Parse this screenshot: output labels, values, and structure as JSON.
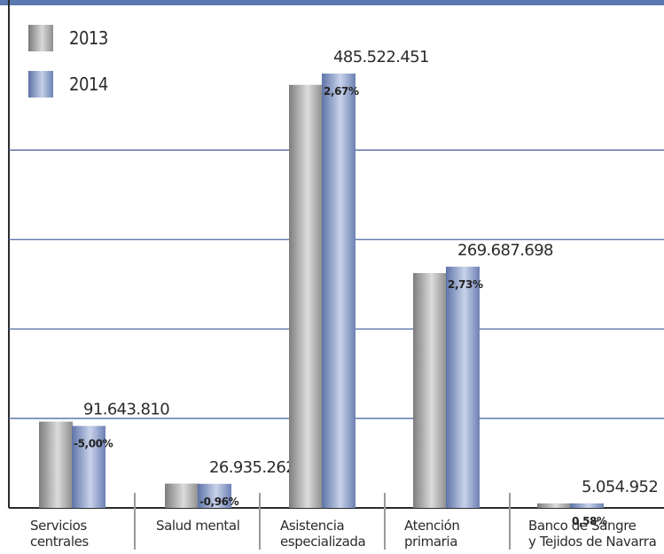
{
  "chart_data": {
    "type": "bar",
    "categories": [
      [
        "Servicios",
        "centrales"
      ],
      [
        "Salud mental"
      ],
      [
        "Asistencia",
        "especializada"
      ],
      [
        "Atención",
        "primaria"
      ],
      [
        "Banco de Sangre",
        "y Tejidos de Navarra"
      ]
    ],
    "series": [
      {
        "name": "2013",
        "values": [
          96467168,
          27196344,
          472887990,
          262522884,
          5025803
        ],
        "color": "#a3a3a3"
      },
      {
        "name": "2014",
        "values": [
          91643810,
          26935262,
          485522451,
          269687698,
          5054952
        ],
        "color": "#8196c4"
      }
    ],
    "value_labels": [
      "91.643.810",
      "26.935.262",
      "485.522.451",
      "269.687.698",
      "5.054.952"
    ],
    "pct_labels": [
      "-5,00%",
      "-0,96%",
      "2,67%",
      "2,73%",
      "0,58%"
    ],
    "ylim": [
      0,
      540000000
    ],
    "grid": true,
    "legend_position": "top-left"
  },
  "colors": {
    "gridline": "#4f6aa3",
    "top_bar": "#5a79b0",
    "axis": "#2b2b2b",
    "separator": "#9a9a9a"
  }
}
